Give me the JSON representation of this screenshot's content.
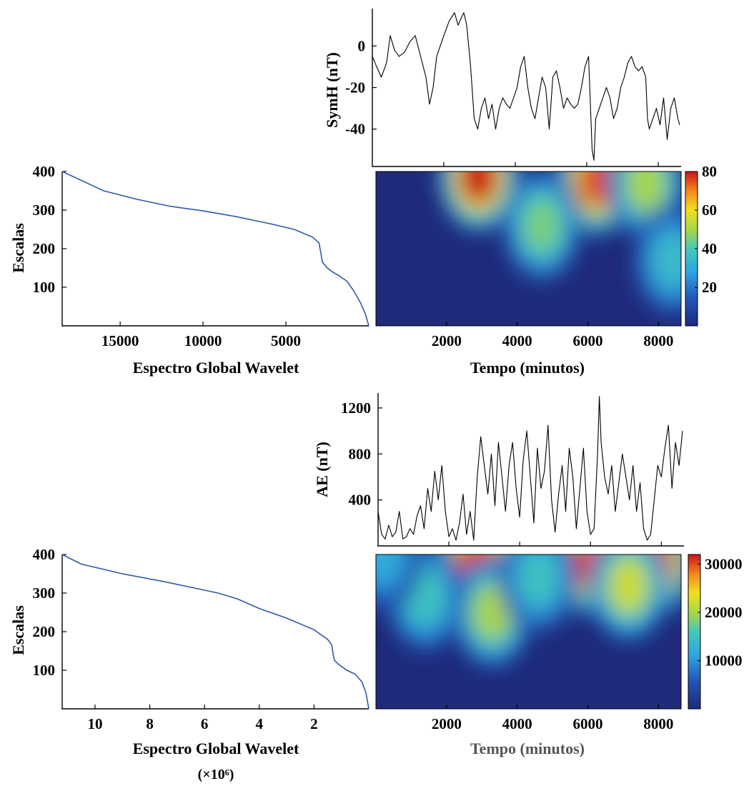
{
  "chart_data": [
    {
      "id": "symh-series",
      "type": "line",
      "ylabel": "SymH (nT)",
      "xlabel": "",
      "xlim": [
        0,
        8640
      ],
      "ylim": [
        -58,
        18
      ],
      "yticks": [
        0,
        -20,
        -40
      ],
      "xticks": [
        2000,
        4000,
        6000,
        8000
      ],
      "xtick_labels_shown": false,
      "color": "#000000",
      "series": [
        {
          "x": [
            0,
            120,
            250,
            400,
            500,
            620,
            750,
            900,
            1050,
            1200,
            1350,
            1500,
            1600,
            1700,
            1800,
            1900,
            2000,
            2150,
            2300,
            2400,
            2500,
            2560,
            2640,
            2750,
            2850,
            2950,
            3050,
            3150,
            3250,
            3350,
            3450,
            3550,
            3650,
            3750,
            3850,
            3950,
            4050,
            4150,
            4250,
            4350,
            4450,
            4550,
            4650,
            4750,
            4850,
            4950,
            5050,
            5150,
            5250,
            5350,
            5450,
            5550,
            5650,
            5750,
            5850,
            5950,
            6050,
            6150,
            6200,
            6250,
            6350,
            6450,
            6550,
            6650,
            6750,
            6850,
            6950,
            7050,
            7150,
            7250,
            7350,
            7450,
            7550,
            7650,
            7700,
            7750,
            7850,
            7950,
            8050,
            8150,
            8250,
            8350,
            8450,
            8550,
            8600
          ],
          "y": [
            -5,
            -10,
            -15,
            -8,
            5,
            -2,
            -5,
            -3,
            2,
            5,
            -5,
            -15,
            -28,
            -20,
            -5,
            0,
            5,
            12,
            16,
            10,
            14,
            16,
            10,
            -10,
            -35,
            -40,
            -30,
            -25,
            -35,
            -28,
            -40,
            -30,
            -25,
            -28,
            -30,
            -25,
            -20,
            -10,
            -5,
            -20,
            -30,
            -35,
            -25,
            -15,
            -20,
            -40,
            -15,
            -12,
            -20,
            -30,
            -25,
            -28,
            -30,
            -28,
            -20,
            -10,
            -5,
            -50,
            -55,
            -35,
            -30,
            -25,
            -20,
            -25,
            -35,
            -30,
            -20,
            -15,
            -8,
            -5,
            -10,
            -12,
            -10,
            -15,
            -35,
            -40,
            -35,
            -30,
            -38,
            -25,
            -45,
            -30,
            -25,
            -35,
            -38
          ]
        }
      ]
    },
    {
      "id": "symh-wavelet",
      "type": "heatmap",
      "xlabel": "Tempo (minutos)",
      "xlim": [
        0,
        8640
      ],
      "ylim": [
        0,
        400
      ],
      "xticks": [
        2000,
        4000,
        6000,
        8000
      ],
      "colorbar": {
        "min": 0,
        "max": 80,
        "ticks": [
          20,
          40,
          60,
          80
        ]
      },
      "hotspots": [
        {
          "x": 2900,
          "y": 390,
          "value": 80
        },
        {
          "x": 6250,
          "y": 380,
          "value": 75
        },
        {
          "x": 7650,
          "y": 370,
          "value": 50
        },
        {
          "x": 4700,
          "y": 260,
          "value": 45
        },
        {
          "x": 8400,
          "y": 170,
          "value": 35
        }
      ]
    },
    {
      "id": "symh-global-spectrum",
      "type": "line",
      "xlabel": "Espectro Global Wavelet",
      "ylabel": "Escalas",
      "xlim": [
        18500,
        0
      ],
      "ylim": [
        0,
        400
      ],
      "xticks": [
        15000,
        10000,
        5000
      ],
      "yticks": [
        100,
        200,
        300,
        400
      ],
      "color": "#2e5aa8",
      "series": [
        {
          "x": [
            0,
            200,
            500,
            900,
            1300,
            1800,
            2200,
            2500,
            2800,
            2900,
            3000,
            3400,
            4500,
            6000,
            8000,
            10000,
            12000,
            14000,
            16000,
            18500
          ],
          "y": [
            0,
            30,
            60,
            90,
            115,
            130,
            140,
            150,
            165,
            190,
            215,
            230,
            250,
            265,
            283,
            298,
            310,
            328,
            350,
            400
          ]
        }
      ]
    },
    {
      "id": "ae-series",
      "type": "line",
      "ylabel": "AE (nT)",
      "xlabel": "",
      "xlim": [
        0,
        8640
      ],
      "ylim": [
        0,
        1330
      ],
      "yticks": [
        400,
        800,
        1200
      ],
      "xticks": [
        2000,
        4000,
        6000,
        8000
      ],
      "xtick_labels_shown": false,
      "color": "#000000",
      "series": [
        {
          "x": [
            0,
            100,
            200,
            300,
            400,
            500,
            600,
            700,
            800,
            900,
            1000,
            1100,
            1200,
            1300,
            1400,
            1500,
            1600,
            1700,
            1800,
            1900,
            2000,
            2100,
            2200,
            2300,
            2400,
            2500,
            2600,
            2700,
            2800,
            2900,
            3000,
            3100,
            3200,
            3300,
            3400,
            3500,
            3600,
            3700,
            3800,
            3900,
            4000,
            4100,
            4200,
            4300,
            4400,
            4500,
            4600,
            4700,
            4800,
            4900,
            5000,
            5100,
            5200,
            5300,
            5400,
            5500,
            5600,
            5700,
            5800,
            5900,
            6000,
            6100,
            6200,
            6250,
            6300,
            6400,
            6500,
            6600,
            6700,
            6800,
            6900,
            7000,
            7100,
            7200,
            7300,
            7400,
            7500,
            7600,
            7700,
            7800,
            7900,
            8000,
            8100,
            8200,
            8300,
            8400,
            8500,
            8600
          ],
          "y": [
            300,
            100,
            60,
            180,
            80,
            120,
            300,
            60,
            80,
            150,
            100,
            260,
            350,
            150,
            500,
            300,
            650,
            400,
            700,
            300,
            80,
            150,
            50,
            200,
            450,
            100,
            300,
            50,
            600,
            950,
            700,
            450,
            800,
            350,
            900,
            600,
            300,
            700,
            900,
            500,
            250,
            750,
            1000,
            600,
            200,
            850,
            500,
            650,
            1050,
            400,
            120,
            450,
            700,
            300,
            850,
            600,
            150,
            500,
            850,
            300,
            100,
            150,
            800,
            1300,
            900,
            600,
            450,
            700,
            300,
            550,
            800,
            600,
            400,
            700,
            300,
            550,
            150,
            50,
            100,
            400,
            700,
            600,
            850,
            1050,
            500,
            900,
            700,
            1000
          ]
        }
      ]
    },
    {
      "id": "ae-wavelet",
      "type": "heatmap",
      "xlabel": "Tempo (minutos)",
      "xlim": [
        0,
        8640
      ],
      "ylim": [
        0,
        400
      ],
      "xticks": [
        2000,
        4000,
        6000,
        8000
      ],
      "colorbar": {
        "min": 0,
        "max": 32000,
        "ticks": [
          10000,
          20000,
          30000
        ]
      },
      "hotspots": [
        {
          "x": 2850,
          "y": 380,
          "value": 30000
        },
        {
          "x": 6150,
          "y": 385,
          "value": 30000
        },
        {
          "x": 7900,
          "y": 385,
          "value": 30000
        },
        {
          "x": 7150,
          "y": 320,
          "value": 22000
        },
        {
          "x": 3300,
          "y": 250,
          "value": 20000
        },
        {
          "x": 4600,
          "y": 340,
          "value": 15000
        },
        {
          "x": 1400,
          "y": 290,
          "value": 15000
        },
        {
          "x": 200,
          "y": 395,
          "value": 12000
        }
      ]
    },
    {
      "id": "ae-global-spectrum",
      "type": "line",
      "xlabel": "Espectro Global Wavelet",
      "xlabel_multiplier": "(×10⁶)",
      "ylabel": "Escalas",
      "xlim": [
        11.2,
        0
      ],
      "ylim": [
        0,
        400
      ],
      "xticks": [
        10,
        8,
        6,
        4,
        2
      ],
      "yticks": [
        100,
        200,
        300,
        400
      ],
      "color": "#2e5aa8",
      "series": [
        {
          "x": [
            0,
            0.1,
            0.25,
            0.5,
            0.8,
            1.1,
            1.25,
            1.3,
            1.35,
            1.5,
            2.0,
            3.0,
            4.0,
            4.8,
            5.5,
            6.5,
            7.5,
            9.0,
            10.5,
            11.2
          ],
          "y": [
            0,
            40,
            70,
            90,
            100,
            115,
            125,
            140,
            165,
            180,
            205,
            235,
            260,
            285,
            300,
            315,
            330,
            350,
            375,
            400
          ]
        }
      ]
    }
  ]
}
